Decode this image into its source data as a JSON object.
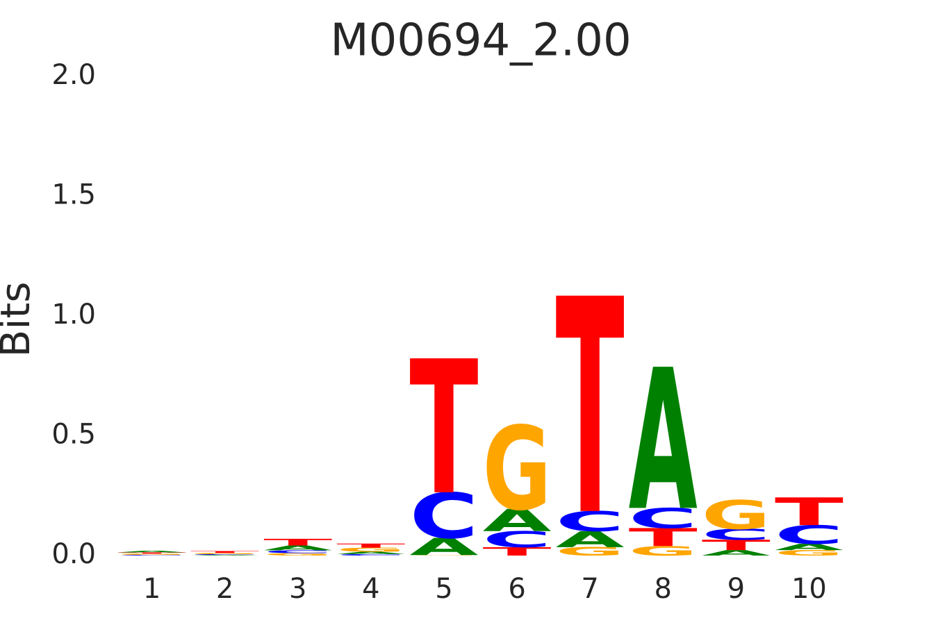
{
  "chart_data": {
    "type": "logo",
    "title": "M00694_2.00",
    "y_label": "Bits",
    "categories": [
      "1",
      "2",
      "3",
      "4",
      "5",
      "6",
      "7",
      "8",
      "9",
      "10"
    ],
    "series": [
      {
        "name": "A",
        "color": "#008000",
        "values": [
          0.007,
          0.003,
          0.02,
          0.01,
          0.072,
          0.093,
          0.067,
          0.59,
          0.023,
          0.026
        ]
      },
      {
        "name": "C",
        "color": "#0000ff",
        "values": [
          0.003,
          0.003,
          0.012,
          0.006,
          0.19,
          0.067,
          0.084,
          0.084,
          0.046,
          0.078
        ]
      },
      {
        "name": "G",
        "color": "#ffa500",
        "values": [
          0.005,
          0.005,
          0.01,
          0.017,
          0.002,
          0.35,
          0.035,
          0.04,
          0.12,
          0.023
        ]
      },
      {
        "name": "T",
        "color": "#ff0000",
        "values": [
          0.005,
          0.008,
          0.028,
          0.017,
          0.56,
          0.035,
          0.9,
          0.075,
          0.043,
          0.116
        ]
      }
    ],
    "ylim": [
      0,
      2
    ],
    "yticks": [
      {
        "value": 0,
        "label": "0.0"
      },
      0.5,
      {
        "value": 1,
        "label": "1.0"
      },
      1.5,
      {
        "value": 2,
        "label": "2.0"
      }
    ],
    "grid": false
  }
}
